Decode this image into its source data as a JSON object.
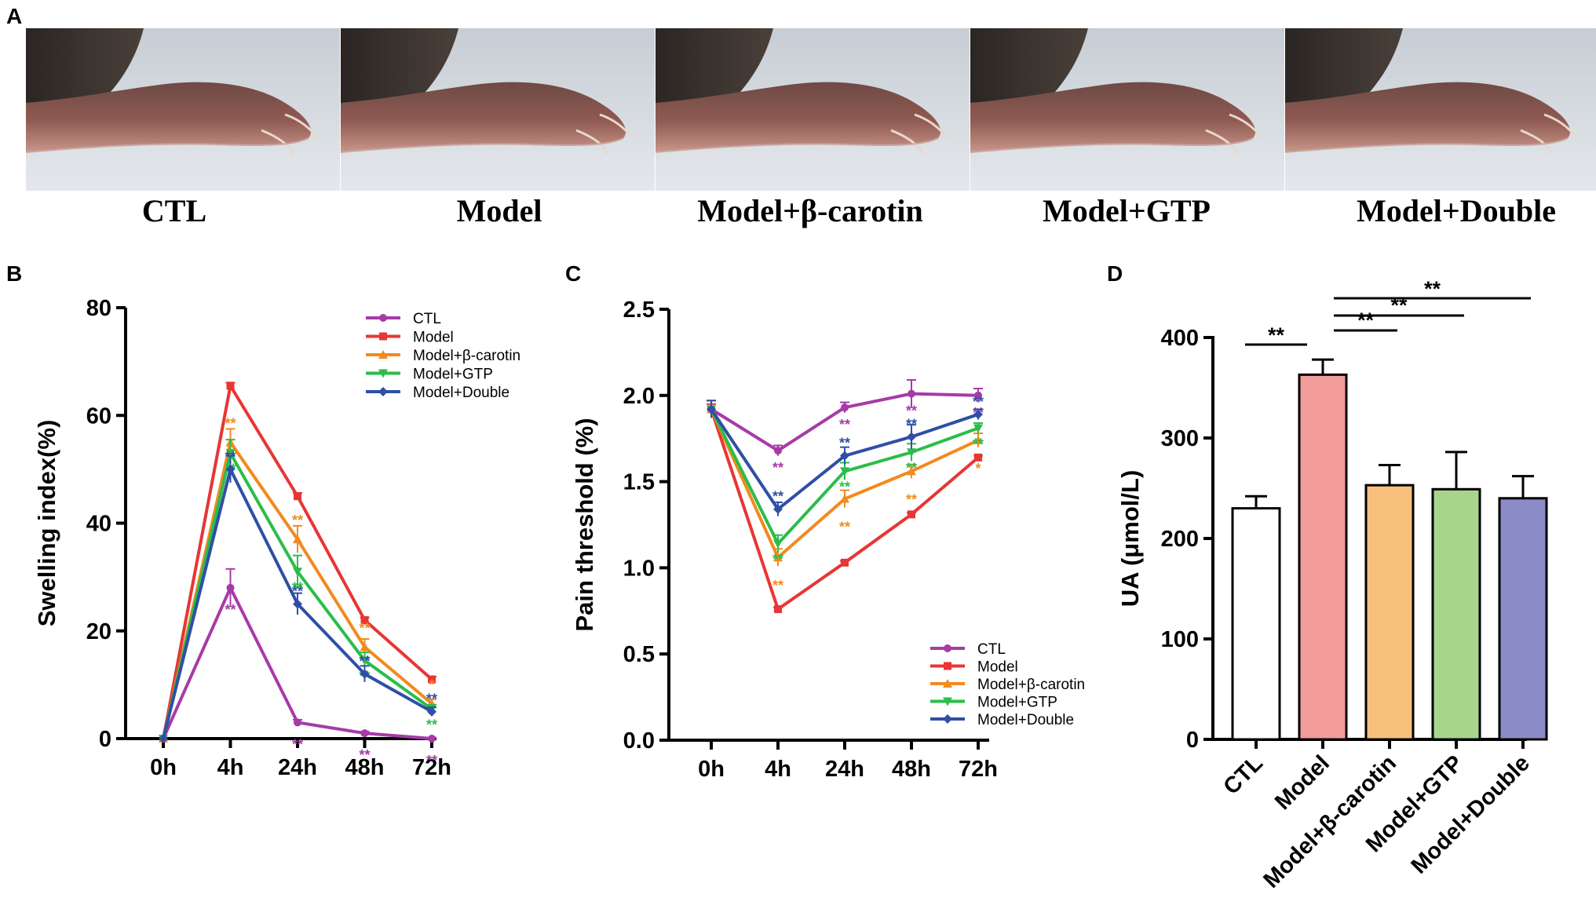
{
  "panel_a": {
    "letter": "A",
    "photos": [
      "CTL",
      "Model",
      "Model+β-carotin",
      "Model+GTP",
      "Model+Double"
    ]
  },
  "colors": {
    "CTL": "#a63ba7",
    "Model": "#e83535",
    "Model+β-carotin": "#f28a1e",
    "Model+GTP": "#2bbd4a",
    "Model+Double": "#2f4fa6"
  },
  "chart_data": [
    {
      "panel": "B",
      "type": "line",
      "title": "",
      "xlabel": "",
      "ylabel": "Swelling index(%)",
      "categories": [
        "0h",
        "4h",
        "24h",
        "48h",
        "72h"
      ],
      "ylim": [
        0,
        80
      ],
      "yticks": [
        0,
        20,
        40,
        60,
        80
      ],
      "legend_position": "top-right",
      "series": [
        {
          "name": "CTL",
          "values": [
            0,
            28,
            3,
            1,
            0
          ],
          "errors": [
            0,
            3.5,
            0.5,
            0.3,
            0.2
          ],
          "sig": [
            "",
            "**",
            "**",
            "**",
            "**"
          ]
        },
        {
          "name": "Model",
          "values": [
            0,
            65.5,
            45,
            22,
            11
          ],
          "errors": [
            0,
            0.6,
            0.6,
            0.5,
            0.5
          ],
          "sig": [
            "",
            "",
            "",
            "",
            ""
          ]
        },
        {
          "name": "Model+β-carotin",
          "values": [
            0,
            55,
            37,
            17,
            6.5
          ],
          "errors": [
            0,
            2.5,
            2.5,
            1.5,
            0.8
          ],
          "sig": [
            "",
            "**",
            "**",
            "**",
            "*"
          ]
        },
        {
          "name": "Model+GTP",
          "values": [
            0,
            53,
            31,
            14.5,
            5.5
          ],
          "errors": [
            0,
            2.5,
            3,
            1.5,
            0.8
          ],
          "sig": [
            "",
            "**",
            "**",
            "**",
            "**"
          ]
        },
        {
          "name": "Model+Double",
          "values": [
            0,
            50,
            25,
            12,
            5
          ],
          "errors": [
            0,
            2.5,
            2,
            1.5,
            0.8
          ],
          "sig": [
            "",
            "**",
            "**",
            "**",
            "**"
          ]
        }
      ]
    },
    {
      "panel": "C",
      "type": "line",
      "title": "",
      "xlabel": "",
      "ylabel": "Pain threshold (%)",
      "categories": [
        "0h",
        "4h",
        "24h",
        "48h",
        "72h"
      ],
      "ylim": [
        0,
        2.5
      ],
      "yticks": [
        "0.0",
        "0.5",
        "1.0",
        "1.5",
        "2.0",
        "2.5"
      ],
      "legend_position": "bottom-right",
      "series": [
        {
          "name": "CTL",
          "values": [
            1.92,
            1.68,
            1.93,
            2.01,
            2.0
          ],
          "errors": [
            0.05,
            0.03,
            0.03,
            0.08,
            0.04
          ],
          "sig": [
            "",
            "**",
            "**",
            "**",
            "**"
          ]
        },
        {
          "name": "Model",
          "values": [
            1.92,
            0.76,
            1.03,
            1.31,
            1.64
          ],
          "errors": [
            0.03,
            0.01,
            0.01,
            0.01,
            0.01
          ],
          "sig": [
            "",
            "",
            "",
            "",
            ""
          ]
        },
        {
          "name": "Model+β-carotin",
          "values": [
            1.92,
            1.06,
            1.4,
            1.56,
            1.74
          ],
          "errors": [
            0.05,
            0.05,
            0.05,
            0.04,
            0.04
          ],
          "sig": [
            "",
            "**",
            "**",
            "**",
            "*"
          ]
        },
        {
          "name": "Model+GTP",
          "values": [
            1.92,
            1.14,
            1.56,
            1.67,
            1.81
          ],
          "errors": [
            0.05,
            0.05,
            0.05,
            0.05,
            0.03
          ],
          "sig": [
            "",
            "**",
            "**",
            "**",
            "**"
          ]
        },
        {
          "name": "Model+Double",
          "values": [
            1.92,
            1.34,
            1.65,
            1.76,
            1.89
          ],
          "errors": [
            0.05,
            0.04,
            0.05,
            0.07,
            0.03
          ],
          "sig": [
            "",
            "**",
            "**",
            "**",
            "**"
          ]
        }
      ]
    },
    {
      "panel": "D",
      "type": "bar",
      "title": "",
      "xlabel": "",
      "ylabel": "UA (μmol/L)",
      "categories": [
        "CTL",
        "Model",
        "Model+β-carotin",
        "Model+GTP",
        "Model+Double"
      ],
      "values": [
        230,
        363,
        253,
        249,
        240
      ],
      "errors": [
        12,
        15,
        20,
        37,
        22
      ],
      "bar_colors": [
        "#ffffff",
        "#f39c9c",
        "#f8c07d",
        "#a8d58c",
        "#8b8bc8"
      ],
      "ylim": [
        0,
        400
      ],
      "yticks": [
        0,
        100,
        200,
        300,
        400
      ],
      "comparisons": [
        {
          "from": "CTL",
          "to": "Model",
          "label": "**"
        },
        {
          "from": "Model",
          "to": "Model+β-carotin",
          "label": "**"
        },
        {
          "from": "Model",
          "to": "Model+GTP",
          "label": "**"
        },
        {
          "from": "Model",
          "to": "Model+Double",
          "label": "**"
        }
      ]
    }
  ]
}
